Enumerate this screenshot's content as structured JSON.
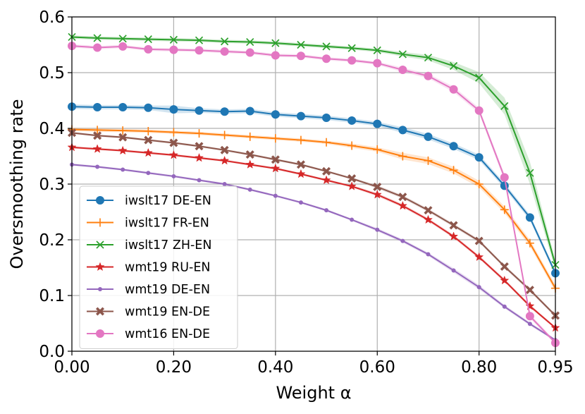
{
  "chart_data": {
    "type": "line",
    "title": "",
    "xlabel": "Weight α",
    "ylabel": "Oversmoothing rate",
    "xlim": [
      0,
      0.95
    ],
    "ylim": [
      0,
      0.6
    ],
    "x_ticks": [
      0,
      0.2,
      0.4,
      0.6,
      0.8,
      0.95
    ],
    "x_tick_labels": [
      "0.00",
      "0.20",
      "0.40",
      "0.60",
      "0.80",
      "0.95"
    ],
    "y_ticks": [
      0,
      0.1,
      0.2,
      0.3,
      0.4,
      0.5,
      0.6
    ],
    "y_tick_labels": [
      "0.0",
      "0.1",
      "0.2",
      "0.3",
      "0.4",
      "0.5",
      "0.6"
    ],
    "grid": true,
    "legend_position": "lower-left",
    "x": [
      0.0,
      0.05,
      0.1,
      0.15,
      0.2,
      0.25,
      0.3,
      0.35,
      0.4,
      0.45,
      0.5,
      0.55,
      0.6,
      0.65,
      0.7,
      0.75,
      0.8,
      0.85,
      0.9,
      0.95
    ],
    "series": [
      {
        "name": "iwslt17 DE-EN",
        "color": "#1f77b4",
        "marker": "circle",
        "values": [
          0.439,
          0.438,
          0.438,
          0.437,
          0.434,
          0.432,
          0.43,
          0.431,
          0.425,
          0.422,
          0.419,
          0.414,
          0.408,
          0.397,
          0.385,
          0.368,
          0.348,
          0.297,
          0.24,
          0.14
        ],
        "band": [
          0.004,
          0.004,
          0.004,
          0.004,
          0.007,
          0.004,
          0.004,
          0.004,
          0.004,
          0.004,
          0.004,
          0.004,
          0.004,
          0.005,
          0.005,
          0.005,
          0.005,
          0.005,
          0.005,
          0.005
        ]
      },
      {
        "name": "iwslt17 FR-EN",
        "color": "#ff7f0e",
        "marker": "plus",
        "values": [
          0.398,
          0.397,
          0.396,
          0.395,
          0.393,
          0.391,
          0.388,
          0.385,
          0.382,
          0.379,
          0.375,
          0.369,
          0.362,
          0.35,
          0.342,
          0.325,
          0.3,
          0.254,
          0.194,
          0.113
        ],
        "band": [
          0.003,
          0.003,
          0.003,
          0.003,
          0.003,
          0.003,
          0.003,
          0.003,
          0.003,
          0.003,
          0.003,
          0.004,
          0.004,
          0.006,
          0.006,
          0.006,
          0.006,
          0.006,
          0.006,
          0.006
        ]
      },
      {
        "name": "iwslt17 ZH-EN",
        "color": "#2ca02c",
        "marker": "x",
        "values": [
          0.564,
          0.562,
          0.561,
          0.56,
          0.559,
          0.558,
          0.556,
          0.555,
          0.553,
          0.55,
          0.547,
          0.544,
          0.54,
          0.533,
          0.527,
          0.512,
          0.491,
          0.44,
          0.32,
          0.155
        ],
        "band": [
          0.003,
          0.003,
          0.003,
          0.003,
          0.003,
          0.003,
          0.003,
          0.003,
          0.003,
          0.003,
          0.003,
          0.003,
          0.003,
          0.004,
          0.005,
          0.007,
          0.01,
          0.015,
          0.02,
          0.008
        ]
      },
      {
        "name": "wmt19 RU-EN",
        "color": "#d62728",
        "marker": "star",
        "values": [
          0.366,
          0.363,
          0.36,
          0.356,
          0.352,
          0.347,
          0.342,
          0.335,
          0.328,
          0.318,
          0.307,
          0.296,
          0.281,
          0.261,
          0.236,
          0.206,
          0.169,
          0.127,
          0.081,
          0.042
        ],
        "band": [
          0.002,
          0.002,
          0.002,
          0.002,
          0.002,
          0.002,
          0.002,
          0.002,
          0.002,
          0.002,
          0.002,
          0.002,
          0.003,
          0.003,
          0.003,
          0.003,
          0.003,
          0.003,
          0.003,
          0.002
        ]
      },
      {
        "name": "wmt19 DE-EN",
        "color": "#9467bd",
        "marker": "dot",
        "values": [
          0.335,
          0.331,
          0.326,
          0.32,
          0.314,
          0.307,
          0.3,
          0.29,
          0.279,
          0.267,
          0.253,
          0.236,
          0.218,
          0.198,
          0.174,
          0.145,
          0.115,
          0.08,
          0.049,
          0.02
        ],
        "band": [
          0.002,
          0.002,
          0.002,
          0.002,
          0.002,
          0.002,
          0.002,
          0.002,
          0.002,
          0.002,
          0.002,
          0.002,
          0.003,
          0.003,
          0.003,
          0.004,
          0.004,
          0.003,
          0.003,
          0.002
        ]
      },
      {
        "name": "wmt19 EN-DE",
        "color": "#8c564b",
        "marker": "xfilled",
        "values": [
          0.392,
          0.387,
          0.384,
          0.379,
          0.374,
          0.368,
          0.361,
          0.353,
          0.344,
          0.335,
          0.323,
          0.31,
          0.295,
          0.277,
          0.253,
          0.226,
          0.198,
          0.152,
          0.11,
          0.064
        ],
        "band": [
          0.002,
          0.002,
          0.002,
          0.002,
          0.002,
          0.002,
          0.002,
          0.002,
          0.002,
          0.002,
          0.002,
          0.002,
          0.003,
          0.003,
          0.003,
          0.003,
          0.003,
          0.003,
          0.003,
          0.003
        ]
      },
      {
        "name": "wmt16 EN-DE",
        "color": "#e377c2",
        "marker": "circle",
        "values": [
          0.548,
          0.545,
          0.547,
          0.542,
          0.541,
          0.54,
          0.538,
          0.536,
          0.531,
          0.53,
          0.525,
          0.522,
          0.517,
          0.505,
          0.494,
          0.47,
          0.432,
          0.312,
          0.063,
          0.015
        ],
        "band": [
          0.003,
          0.003,
          0.003,
          0.003,
          0.003,
          0.003,
          0.003,
          0.003,
          0.003,
          0.003,
          0.003,
          0.003,
          0.003,
          0.004,
          0.004,
          0.005,
          0.005,
          0.006,
          0.004,
          0.003
        ]
      }
    ]
  }
}
